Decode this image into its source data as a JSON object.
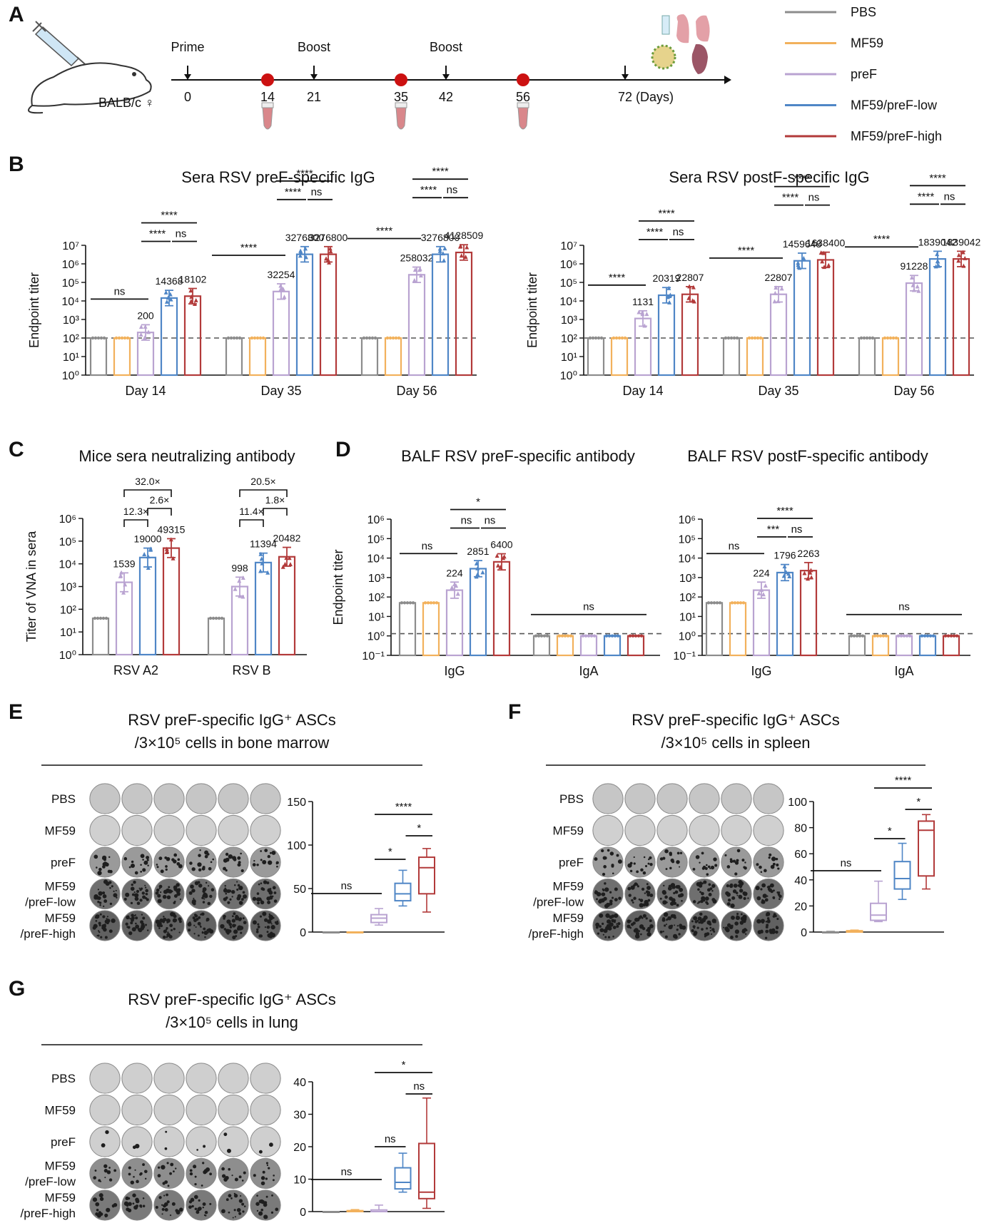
{
  "colors": {
    "PBS": "#8c8c8c",
    "MF59": "#f2b15c",
    "preF": "#b9a3d1",
    "MF59/preF-low": "#4f86c6",
    "MF59/preF-high": "#b23a3a",
    "timepoint": "#cc1111",
    "dashed": "#555555"
  },
  "panels": {
    "A": {
      "label": "A",
      "mouse_label": "BALB/c ♀",
      "events": [
        {
          "label": "Prime",
          "day": "0"
        },
        {
          "label": "",
          "day": "14"
        },
        {
          "label": "Boost",
          "day": "21"
        },
        {
          "label": "",
          "day": "35"
        },
        {
          "label": "Boost",
          "day": "42"
        },
        {
          "label": "",
          "day": "56"
        },
        {
          "label": "",
          "day": "72 (Days)"
        }
      ],
      "legend": [
        "PBS",
        "MF59",
        "preF",
        "MF59/preF-low",
        "MF59/preF-high"
      ]
    },
    "B": {
      "label": "B"
    },
    "C": {
      "label": "C"
    },
    "D": {
      "label": "D"
    },
    "E": {
      "label": "E",
      "title_line1": "RSV preF-specific IgG⁺ ASCs",
      "title_line2": "/3×10⁵ cells in bone marrow"
    },
    "F": {
      "label": "F",
      "title_line1": "RSV preF-specific IgG⁺ ASCs",
      "title_line2": "/3×10⁵ cells in spleen"
    },
    "G": {
      "label": "G",
      "title_line1": "RSV preF-specific IgG⁺ ASCs",
      "title_line2": "/3×10⁵ cells in lung"
    }
  },
  "well_rows": [
    "PBS",
    "MF59",
    "preF",
    "MF59\n/preF-low",
    "MF59\n/preF-high"
  ],
  "chart_data": [
    {
      "id": "B1",
      "type": "bar",
      "title": "Sera RSV preF-specific IgG",
      "ylabel": "Endpoint titer",
      "yscale": "log",
      "ylim": [
        1,
        10000000
      ],
      "yticks": [
        "10⁰",
        "10¹",
        "10²",
        "10³",
        "10⁴",
        "10⁵",
        "10⁶",
        "10⁷"
      ],
      "baseline": 100,
      "categories": [
        "Day 14",
        "Day 35",
        "Day 56"
      ],
      "series": [
        {
          "name": "PBS",
          "values": [
            100,
            100,
            100
          ]
        },
        {
          "name": "MF59",
          "values": [
            100,
            100,
            100
          ]
        },
        {
          "name": "preF",
          "values": [
            200,
            32254,
            258032
          ]
        },
        {
          "name": "MF59/preF-low",
          "values": [
            14368,
            3276800,
            3276800
          ]
        },
        {
          "name": "MF59/preF-high",
          "values": [
            18102,
            3276800,
            4128509
          ]
        }
      ],
      "value_labels": [
        [
          "",
          "",
          "200",
          "14368",
          "18102"
        ],
        [
          "",
          "",
          "32254",
          "3276800",
          "3276800"
        ],
        [
          "",
          "",
          "258032",
          "3276800",
          "4128509"
        ]
      ],
      "significance": [
        [
          "ns",
          "****",
          "****",
          "ns"
        ],
        [
          "****",
          "****",
          "****",
          "ns"
        ],
        [
          "****",
          "****",
          "****",
          "ns"
        ]
      ]
    },
    {
      "id": "B2",
      "type": "bar",
      "title": "Sera RSV postF-specific IgG",
      "ylabel": "Endpoint titer",
      "yscale": "log",
      "ylim": [
        1,
        10000000
      ],
      "yticks": [
        "10⁰",
        "10¹",
        "10²",
        "10³",
        "10⁴",
        "10⁵",
        "10⁶",
        "10⁷"
      ],
      "baseline": 100,
      "categories": [
        "Day 14",
        "Day 35",
        "Day 56"
      ],
      "series": [
        {
          "name": "PBS",
          "values": [
            100,
            100,
            100
          ]
        },
        {
          "name": "MF59",
          "values": [
            100,
            100,
            100
          ]
        },
        {
          "name": "preF",
          "values": [
            1131,
            22807,
            91228
          ]
        },
        {
          "name": "MF59/preF-low",
          "values": [
            20319,
            1459648,
            1839042
          ]
        },
        {
          "name": "MF59/preF-high",
          "values": [
            22807,
            1638400,
            1839042
          ]
        }
      ],
      "value_labels": [
        [
          "",
          "",
          "1131",
          "20319",
          "22807"
        ],
        [
          "",
          "",
          "22807",
          "1459648",
          "1638400"
        ],
        [
          "",
          "",
          "91228",
          "1839042",
          "1839042"
        ]
      ],
      "significance": [
        [
          "****",
          "****",
          "****",
          "ns"
        ],
        [
          "****",
          "****",
          "****",
          "ns"
        ],
        [
          "****",
          "****",
          "****",
          "ns"
        ]
      ]
    },
    {
      "id": "C",
      "type": "bar",
      "title": "Mice sera neutralizing antibody",
      "ylabel": "Titer of VNA in sera",
      "yscale": "log",
      "ylim": [
        1,
        1000000
      ],
      "yticks": [
        "10⁰",
        "10¹",
        "10²",
        "10³",
        "10⁴",
        "10⁵",
        "10⁶"
      ],
      "categories": [
        "RSV A2",
        "RSV B"
      ],
      "series": [
        {
          "name": "PBS",
          "values": [
            40,
            40
          ]
        },
        {
          "name": "preF",
          "values": [
            1539,
            998
          ]
        },
        {
          "name": "MF59/preF-low",
          "values": [
            19000,
            11394
          ]
        },
        {
          "name": "MF59/preF-high",
          "values": [
            49315,
            20482
          ]
        }
      ],
      "value_labels": [
        [
          "",
          "1539",
          "19000",
          "49315"
        ],
        [
          "",
          "998",
          "11394",
          "20482"
        ]
      ],
      "fold_changes": [
        [
          "32.0×",
          "2.6×",
          "12.3×"
        ],
        [
          "20.5×",
          "1.8×",
          "11.4×"
        ]
      ]
    },
    {
      "id": "D1",
      "type": "bar",
      "title": "BALF RSV preF-specific antibody",
      "ylabel": "Endpoint titer",
      "yscale": "log",
      "ylim": [
        0.1,
        1000000
      ],
      "yticks": [
        "10⁻¹",
        "10⁰",
        "10¹",
        "10²",
        "10³",
        "10⁴",
        "10⁵",
        "10⁶"
      ],
      "baseline": 1.3,
      "categories": [
        "IgG",
        "IgA"
      ],
      "series": [
        {
          "name": "PBS",
          "values": [
            50,
            1
          ]
        },
        {
          "name": "MF59",
          "values": [
            50,
            1
          ]
        },
        {
          "name": "preF",
          "values": [
            224,
            1
          ]
        },
        {
          "name": "MF59/preF-low",
          "values": [
            2851,
            1
          ]
        },
        {
          "name": "MF59/preF-high",
          "values": [
            6400,
            1
          ]
        }
      ],
      "value_labels": [
        [
          "",
          "",
          "224",
          "2851",
          "6400"
        ],
        [
          "",
          "",
          "",
          "",
          ""
        ]
      ],
      "significance": [
        "ns",
        "*",
        "ns",
        "ns",
        "ns"
      ]
    },
    {
      "id": "D2",
      "type": "bar",
      "title": "BALF RSV postF-specific antibody",
      "ylabel": "",
      "yscale": "log",
      "ylim": [
        0.1,
        1000000
      ],
      "yticks": [
        "10⁻¹",
        "10⁰",
        "10¹",
        "10²",
        "10³",
        "10⁴",
        "10⁵",
        "10⁶"
      ],
      "baseline": 1.3,
      "categories": [
        "IgG",
        "IgA"
      ],
      "series": [
        {
          "name": "PBS",
          "values": [
            50,
            1
          ]
        },
        {
          "name": "MF59",
          "values": [
            50,
            1
          ]
        },
        {
          "name": "preF",
          "values": [
            224,
            1
          ]
        },
        {
          "name": "MF59/preF-low",
          "values": [
            1796,
            1
          ]
        },
        {
          "name": "MF59/preF-high",
          "values": [
            2263,
            1
          ]
        }
      ],
      "value_labels": [
        [
          "",
          "",
          "224",
          "1796",
          "2263"
        ],
        [
          "",
          "",
          "",
          "",
          ""
        ]
      ],
      "significance": [
        "ns",
        "****",
        "***",
        "ns",
        "ns"
      ]
    },
    {
      "id": "E",
      "type": "box",
      "ylim": [
        0,
        150
      ],
      "yticks": [
        "0",
        "50",
        "100",
        "150"
      ],
      "series": [
        {
          "name": "PBS",
          "min": 0,
          "q1": 0,
          "median": 0,
          "q3": 0,
          "max": 0
        },
        {
          "name": "MF59",
          "min": 0,
          "q1": 0,
          "median": 0,
          "q3": 0,
          "max": 0
        },
        {
          "name": "preF",
          "min": 8,
          "q1": 11,
          "median": 16,
          "q3": 20,
          "max": 27
        },
        {
          "name": "MF59/preF-low",
          "min": 30,
          "q1": 36,
          "median": 44,
          "q3": 56,
          "max": 71
        },
        {
          "name": "MF59/preF-high",
          "min": 23,
          "q1": 44,
          "median": 74,
          "q3": 86,
          "max": 96
        }
      ],
      "significance": [
        "ns",
        "*",
        "****",
        "*"
      ]
    },
    {
      "id": "F",
      "type": "box",
      "ylim": [
        0,
        100
      ],
      "yticks": [
        "0",
        "20",
        "40",
        "60",
        "80",
        "100"
      ],
      "series": [
        {
          "name": "PBS",
          "min": 0,
          "q1": 0,
          "median": 0,
          "q3": 0,
          "max": 0.5
        },
        {
          "name": "MF59",
          "min": 0,
          "q1": 0,
          "median": 0.5,
          "q3": 1,
          "max": 1.5
        },
        {
          "name": "preF",
          "min": 8,
          "q1": 9,
          "median": 13,
          "q3": 22,
          "max": 39
        },
        {
          "name": "MF59/preF-low",
          "min": 25,
          "q1": 33,
          "median": 41,
          "q3": 54,
          "max": 68
        },
        {
          "name": "MF59/preF-high",
          "min": 33,
          "q1": 43,
          "median": 78,
          "q3": 85,
          "max": 90
        }
      ],
      "significance": [
        "ns",
        "*",
        "****",
        "*"
      ]
    },
    {
      "id": "G",
      "type": "box",
      "ylim": [
        0,
        40
      ],
      "yticks": [
        "0",
        "10",
        "20",
        "30",
        "40"
      ],
      "series": [
        {
          "name": "PBS",
          "min": 0,
          "q1": 0,
          "median": 0,
          "q3": 0,
          "max": 0
        },
        {
          "name": "MF59",
          "min": 0,
          "q1": 0,
          "median": 0,
          "q3": 0.3,
          "max": 0.6
        },
        {
          "name": "preF",
          "min": 0,
          "q1": 0,
          "median": 0,
          "q3": 0.5,
          "max": 2
        },
        {
          "name": "MF59/preF-low",
          "min": 6,
          "q1": 7,
          "median": 9,
          "q3": 13.5,
          "max": 18
        },
        {
          "name": "MF59/preF-high",
          "min": 1,
          "q1": 4,
          "median": 6,
          "q3": 21,
          "max": 35
        }
      ],
      "significance": [
        "ns",
        "ns",
        "*",
        "ns"
      ]
    }
  ]
}
